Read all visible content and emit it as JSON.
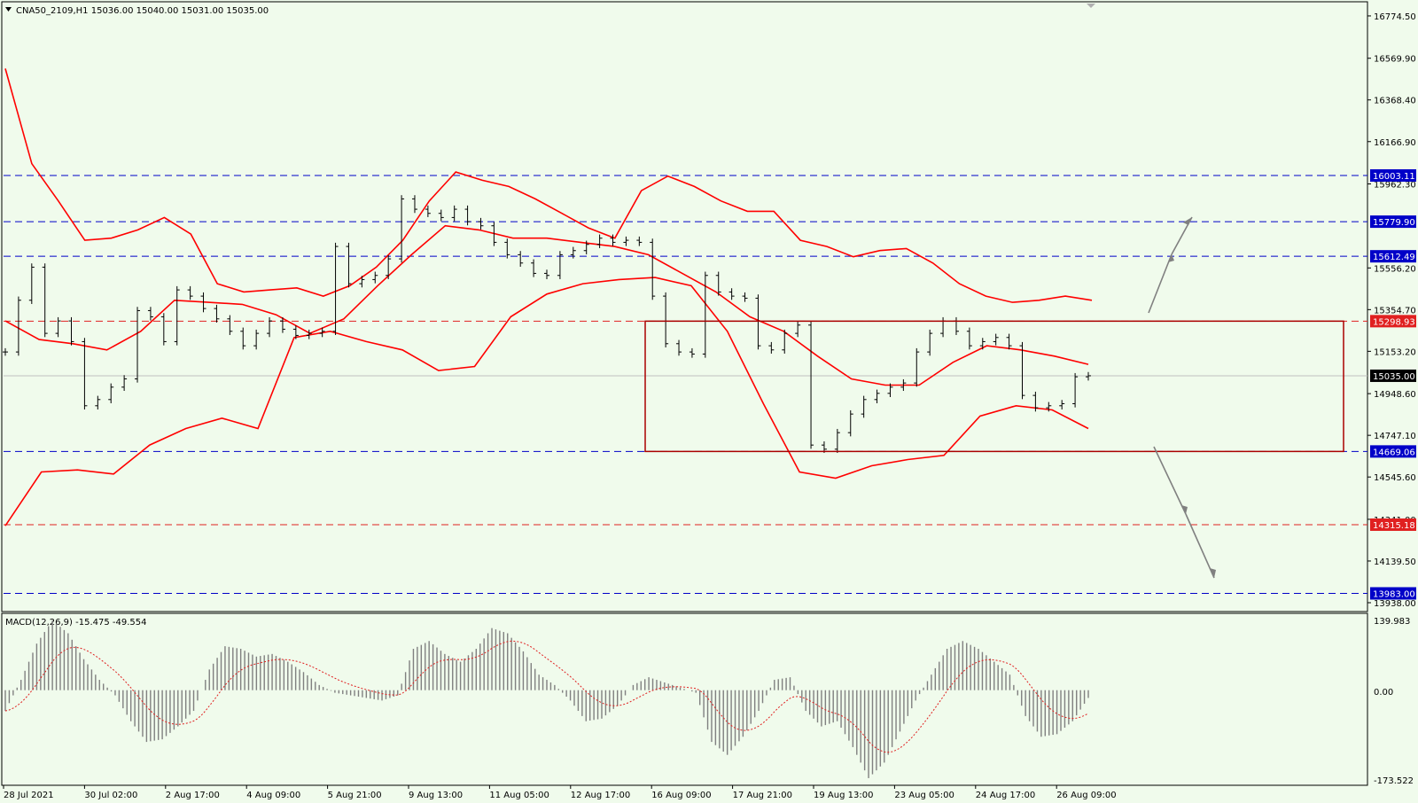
{
  "header": {
    "title": "CNA50_2109,H1 15036.00 15040.00 15031.00 15035.00"
  },
  "macd": {
    "label": "MACD(12,26,9) -15.475 -49.554",
    "axis_labels": [
      "139.983",
      "0.00",
      "-173.522"
    ]
  },
  "colors": {
    "background": "#f0fbec",
    "bollinger": "#ff0000",
    "box": "#aa0000",
    "level_blue": "#0000c8",
    "level_red": "#e02020",
    "macd_hist": "#808080",
    "macd_signal": "#e02020",
    "arrow": "#808080"
  },
  "chart_data": [
    {
      "type": "candlestick",
      "symbol": "CNA50_2109",
      "timeframe": "H1",
      "ohlc_last": {
        "open": 15036.0,
        "high": 15040.0,
        "low": 15031.0,
        "close": 15035.0
      },
      "ylim": [
        13938.0,
        16800.0
      ],
      "y_ticks": [
        "16774.50",
        "16569.90",
        "16368.40",
        "16166.90",
        "15962.30",
        "15556.20",
        "15354.70",
        "15153.20",
        "14948.60",
        "14747.10",
        "14545.60",
        "14341.00",
        "14139.50",
        "13938.00"
      ],
      "x_ticks": [
        "28 Jul 2021",
        "30 Jul 02:00",
        "2 Aug 17:00",
        "4 Aug 09:00",
        "5 Aug 21:00",
        "9 Aug 13:00",
        "11 Aug 05:00",
        "12 Aug 17:00",
        "16 Aug 09:00",
        "17 Aug 21:00",
        "19 Aug 13:00",
        "23 Aug 05:00",
        "24 Aug 17:00",
        "26 Aug 09:00"
      ],
      "horizontal_levels": [
        {
          "value": 16003.11,
          "label": "16003.11",
          "color": "blue"
        },
        {
          "value": 15779.9,
          "label": "15779.90",
          "color": "blue"
        },
        {
          "value": 15612.49,
          "label": "15612.49",
          "color": "blue"
        },
        {
          "value": 15298.93,
          "label": "15298.93",
          "color": "red"
        },
        {
          "value": 15035.0,
          "label": "15035.00",
          "color": "black"
        },
        {
          "value": 14669.06,
          "label": "14669.06",
          "color": "blue"
        },
        {
          "value": 14315.18,
          "label": "14315.18",
          "color": "red"
        },
        {
          "value": 13983.0,
          "label": "13983.00",
          "color": "blue"
        }
      ],
      "range_box": {
        "top": 15298.93,
        "bottom": 14669.06
      },
      "close_series": [
        15150,
        15400,
        15560,
        15240,
        15300,
        15200,
        14890,
        14920,
        14980,
        15020,
        15350,
        15320,
        15200,
        15450,
        15420,
        15360,
        15310,
        15250,
        15180,
        15240,
        15300,
        15260,
        15230,
        15240,
        15250,
        15660,
        15480,
        15500,
        15520,
        15600,
        15890,
        15840,
        15820,
        15800,
        15840,
        15780,
        15760,
        15680,
        15620,
        15580,
        15530,
        15520,
        15620,
        15640,
        15670,
        15700,
        15680,
        15690,
        15680,
        15420,
        15190,
        15150,
        15140,
        15520,
        15440,
        15420,
        15410,
        15180,
        15160,
        15240,
        15280,
        14700,
        14680,
        14760,
        14850,
        14920,
        14950,
        14980,
        15000,
        15150,
        15240,
        15300,
        15250,
        15180,
        15200,
        15220,
        15180,
        14940,
        14880,
        14890,
        14900,
        15030,
        15035
      ],
      "bollinger_upper": [
        16520,
        16060,
        15880,
        15690,
        15700,
        15740,
        15800,
        15720,
        15480,
        15440,
        15450,
        15460,
        15420,
        15470,
        15560,
        15690,
        15880,
        16020,
        15980,
        15950,
        15890,
        15820,
        15750,
        15700,
        15930,
        16000,
        15950,
        15880,
        15830,
        15830,
        15690,
        15660,
        15610,
        15640,
        15650,
        15580,
        15480,
        15420,
        15390,
        15400,
        15420,
        15400
      ],
      "bollinger_middle": [
        15300,
        15210,
        15190,
        15160,
        15250,
        15400,
        15390,
        15380,
        15330,
        15240,
        15310,
        15470,
        15620,
        15760,
        15740,
        15700,
        15700,
        15680,
        15660,
        15620,
        15530,
        15440,
        15320,
        15250,
        15130,
        15020,
        14990,
        14990,
        15100,
        15180,
        15160,
        15130,
        15090
      ],
      "bollinger_lower": [
        14310,
        14570,
        14580,
        14560,
        14700,
        14780,
        14830,
        14780,
        15220,
        15250,
        15200,
        15160,
        15060,
        15080,
        15320,
        15430,
        15480,
        15500,
        15510,
        15470,
        15250,
        14900,
        14570,
        14540,
        14600,
        14630,
        14650,
        14840,
        14890,
        14870,
        14780
      ]
    },
    {
      "type": "bar",
      "name": "MACD(12,26,9)",
      "main_value": -15.475,
      "signal_value": -49.554,
      "ylim": [
        -173.522,
        139.983
      ],
      "histogram": [
        -40,
        20,
        90,
        135,
        110,
        60,
        20,
        -10,
        -60,
        -100,
        -95,
        -70,
        -40,
        40,
        85,
        80,
        65,
        70,
        55,
        35,
        10,
        -5,
        -10,
        -15,
        -20,
        -10,
        80,
        95,
        70,
        55,
        80,
        120,
        110,
        75,
        30,
        10,
        -20,
        -60,
        -55,
        -30,
        10,
        25,
        15,
        5,
        -5,
        -100,
        -125,
        -90,
        -40,
        20,
        25,
        -40,
        -70,
        -60,
        -110,
        -170,
        -140,
        -80,
        -20,
        30,
        80,
        95,
        80,
        55,
        30,
        -50,
        -90,
        -85,
        -60,
        -15
      ]
    }
  ]
}
